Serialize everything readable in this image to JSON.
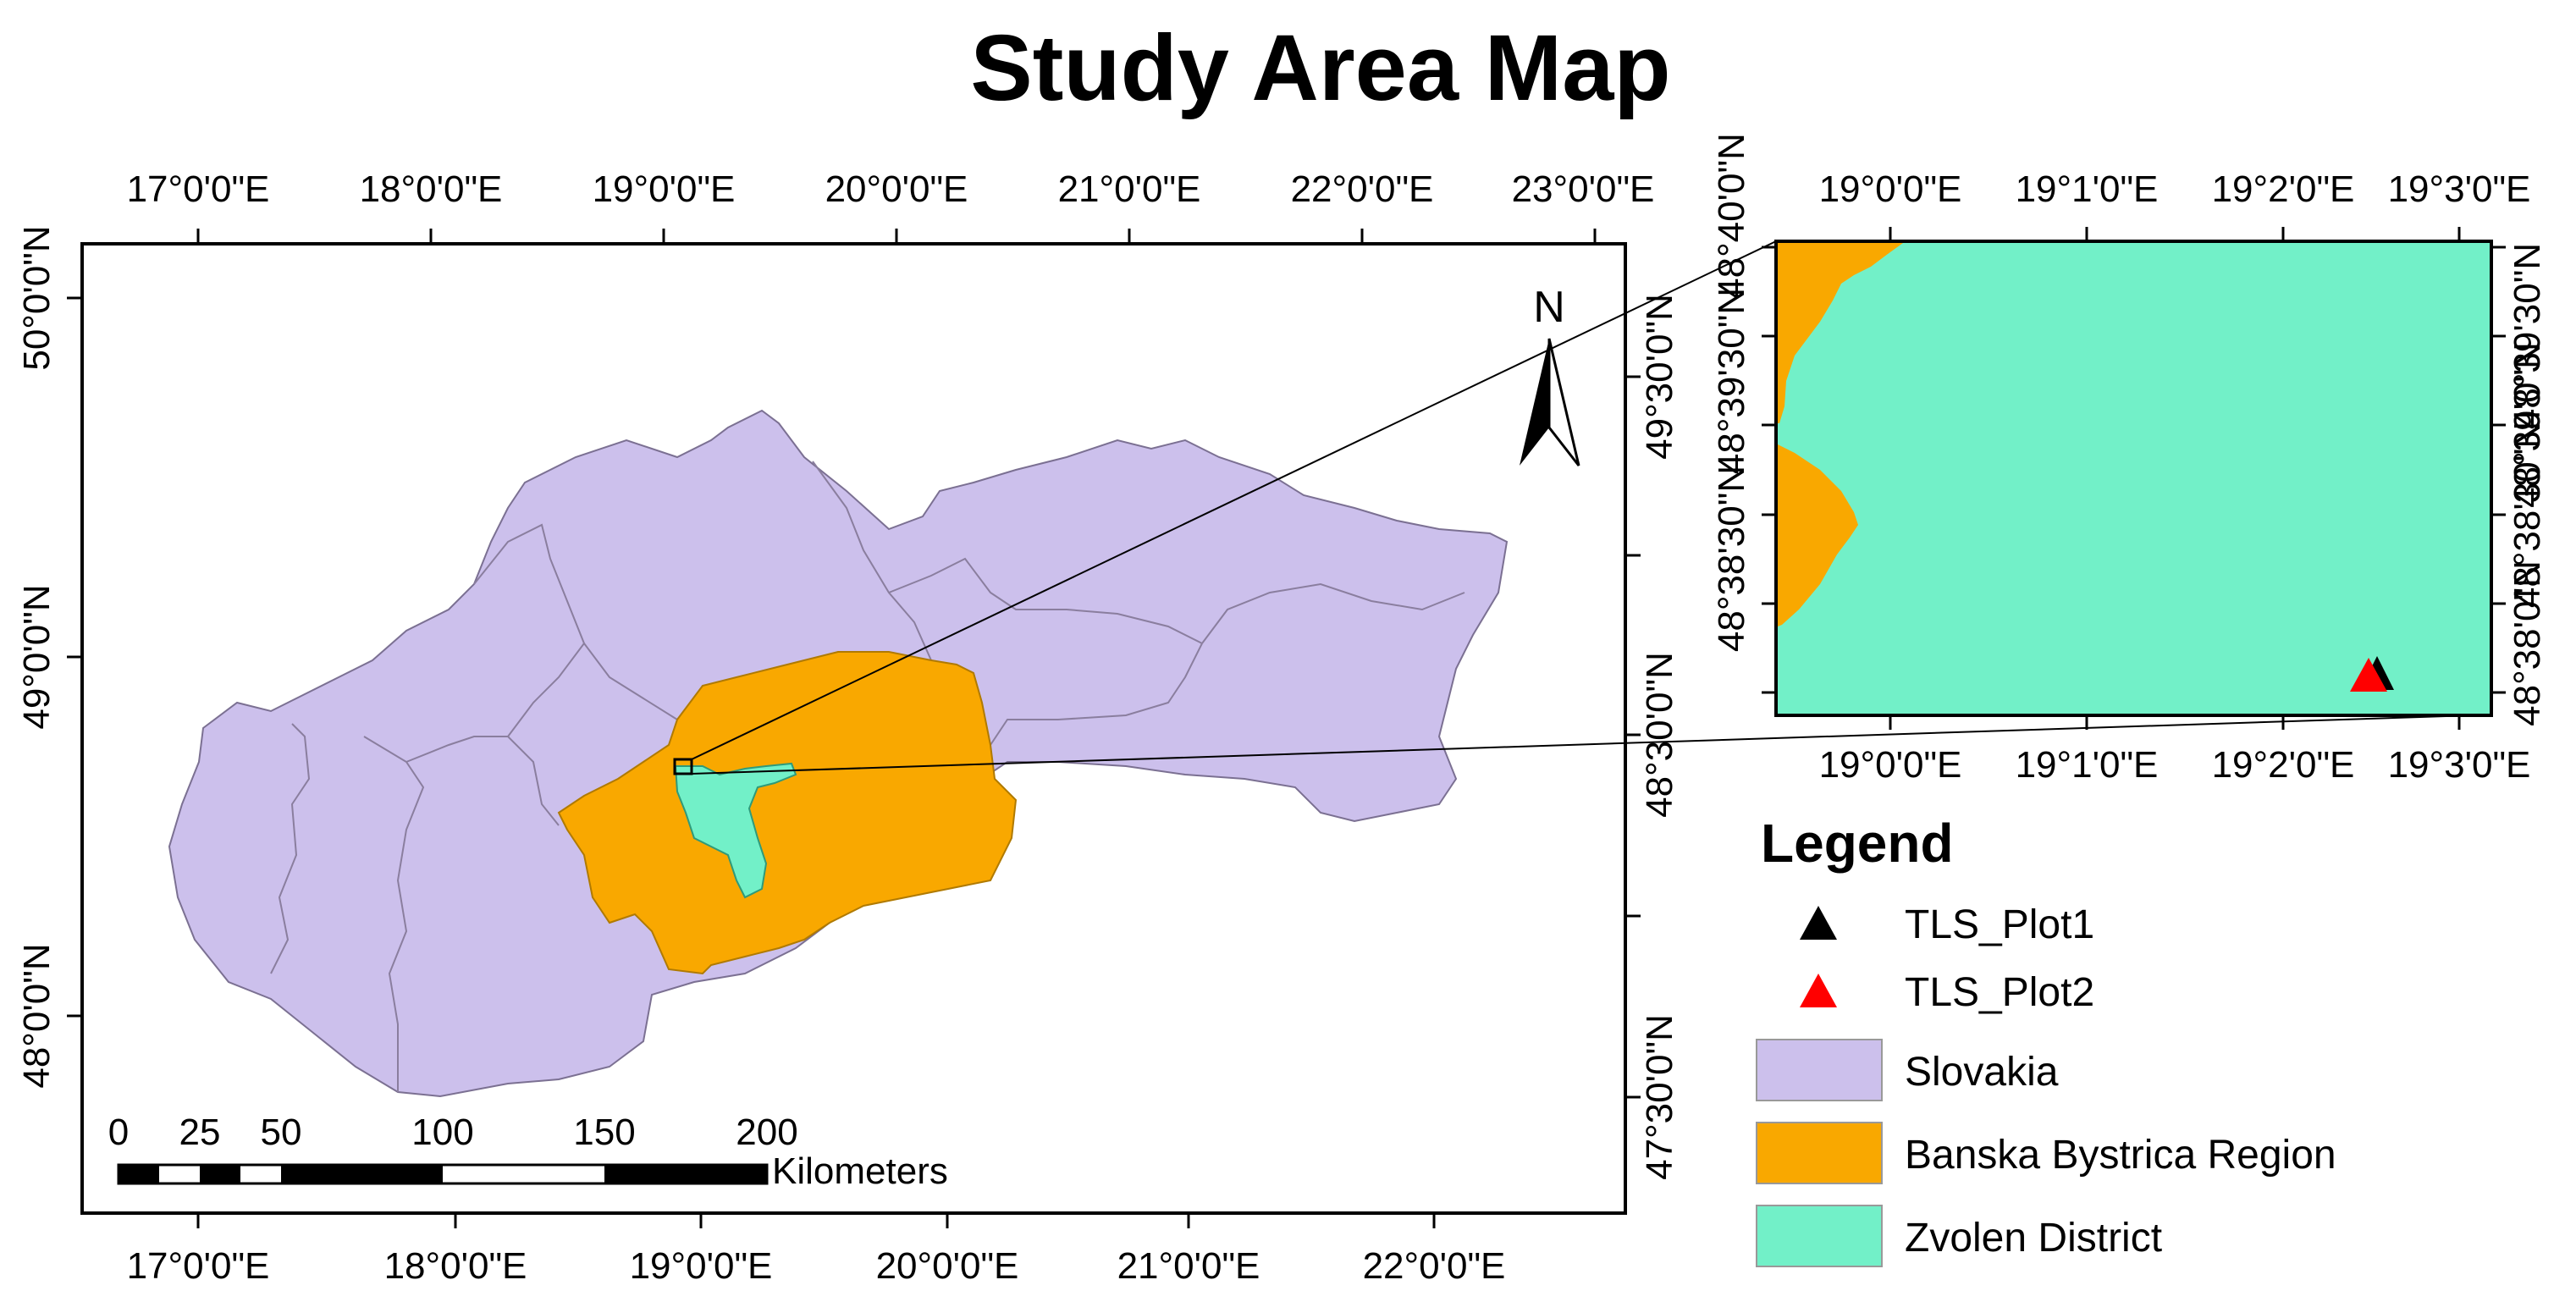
{
  "title": "Study Area Map",
  "main_map": {
    "top_ticks": [
      "17°0'0\"E",
      "18°0'0\"E",
      "19°0'0\"E",
      "20°0'0\"E",
      "21°0'0\"E",
      "22°0'0\"E",
      "23°0'0\"E"
    ],
    "bottom_ticks": [
      "17°0'0\"E",
      "18°0'0\"E",
      "19°0'0\"E",
      "20°0'0\"E",
      "21°0'0\"E",
      "22°0'0\"E"
    ],
    "left_ticks": [
      "50°0'0\"N",
      "49°0'0\"N",
      "48°0'0\"N"
    ],
    "right_ticks": [
      "49°30'0\"N",
      "48°30'0\"N",
      "47°30'0\"N"
    ],
    "north_label": "N",
    "scale_bar": {
      "labels": [
        "0",
        "25",
        "50",
        "100",
        "150",
        "200"
      ],
      "unit": "Kilometers"
    }
  },
  "inset_map": {
    "top_ticks": [
      "19°0'0\"E",
      "19°1'0\"E",
      "19°2'0\"E",
      "19°3'0\"E"
    ],
    "bottom_ticks": [
      "19°0'0\"E",
      "19°1'0\"E",
      "19°2'0\"E",
      "19°3'0\"E"
    ],
    "left_ticks": [
      "48°40'0\"N",
      "48°39'30\"N",
      "48°39'0\"N",
      "48°38'30\"N",
      "48°38'0\"N",
      "48°37'30\"N"
    ],
    "left_ticks_visible": [
      "48°40'0\"N",
      "48°39'30\"N",
      "48°38'30\"N",
      "48°38'0\"N"
    ],
    "right_ticks": [
      "48°39'30\"N",
      "48°39'0\"N",
      "48°38'0\"N"
    ],
    "right_ticks_full": [
      "48°39'30\"N",
      "48°39'0\"N",
      "48°38'30\"N",
      "48°38'0\"N"
    ]
  },
  "legend": {
    "title": "Legend",
    "items": [
      {
        "label": "TLS_Plot1",
        "symbol": "triangle",
        "color": "#000000"
      },
      {
        "label": "TLS_Plot2",
        "symbol": "triangle",
        "color": "#ff0000"
      },
      {
        "label": "Slovakia",
        "symbol": "patch",
        "color": "#ccc0ec"
      },
      {
        "label": "Banska Bystrica Region",
        "symbol": "patch",
        "color": "#f9a800"
      },
      {
        "label": "Zvolen District",
        "symbol": "patch",
        "color": "#72f0c8"
      }
    ]
  },
  "colors": {
    "slovakia": "#ccc0ec",
    "banska_bystrica": "#f9a800",
    "zvolen": "#72f0c8",
    "region_borders": "#8a7e9e"
  }
}
